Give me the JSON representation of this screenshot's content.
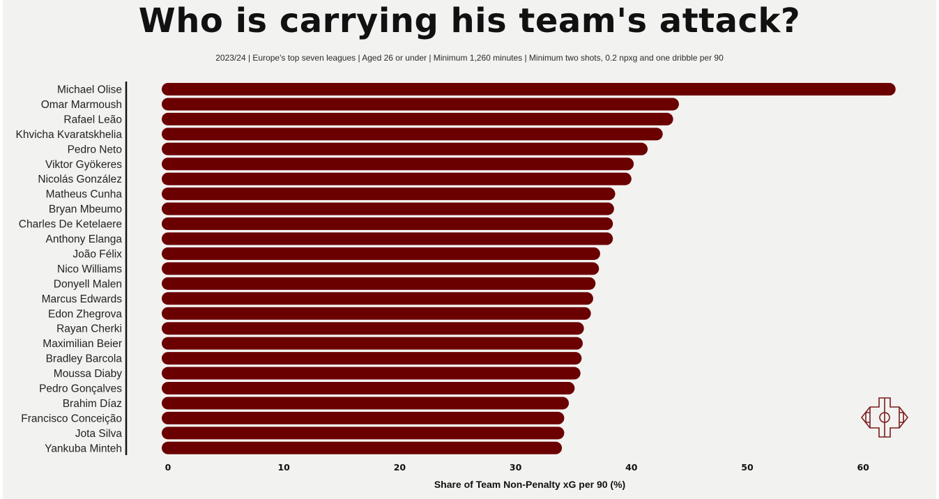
{
  "colors": {
    "bar": "#6b0000",
    "background": "#f2f2f1",
    "axis": "#111111",
    "logo": "#7a1a1a"
  },
  "chart_data": {
    "type": "bar",
    "orientation": "horizontal",
    "title": "Who is carrying his team's attack?",
    "subtitle": "2023/24 | Europe's top seven leagues | Aged 26 or under | Minimum 1,260 minutes | Minimum two shots, 0.2 npxg and one dribble per 90",
    "xlabel": "Share of Team Non-Penalty xG per 90 (%)",
    "ylabel": "",
    "xlim": [
      0,
      62
    ],
    "xticks": [
      "0",
      "10",
      "20",
      "30",
      "40",
      "50",
      "60"
    ],
    "grid": false,
    "categories": [
      "Michael Olise",
      "Omar Marmoush",
      "Rafael Leão",
      "Khvicha Kvaratskhelia",
      "Pedro Neto",
      "Viktor Gyökeres",
      "Nicolás González",
      "Matheus Cunha",
      "Bryan Mbeumo",
      "Charles De Ketelaere",
      "Anthony Elanga",
      "João Félix",
      "Nico Williams",
      "Donyell Malen",
      "Marcus Edwards",
      "Edon Zhegrova",
      "Rayan Cherki",
      "Maximilian Beier",
      "Bradley Barcola",
      "Moussa Diaby",
      "Pedro Gonçalves",
      "Brahim Díaz",
      "Francisco Conceição",
      "Jota Silva",
      "Yankuba Minteh"
    ],
    "values": [
      62.8,
      44.1,
      43.6,
      42.7,
      41.4,
      40.2,
      40.0,
      38.6,
      38.5,
      38.4,
      38.4,
      37.3,
      37.2,
      36.9,
      36.7,
      36.5,
      35.9,
      35.8,
      35.7,
      35.6,
      35.1,
      34.6,
      34.2,
      34.2,
      34.0
    ]
  },
  "logo": {
    "icon": "pitch-logo-icon"
  }
}
